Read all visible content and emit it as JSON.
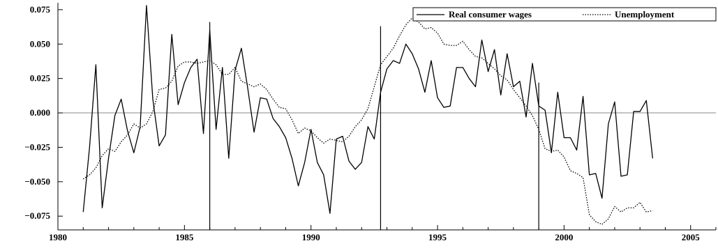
{
  "chart_data": {
    "type": "line",
    "title": "",
    "xlabel": "",
    "ylabel": "",
    "xlim": [
      1980,
      2006
    ],
    "ylim": [
      -0.085,
      0.08
    ],
    "xticks": [
      1980,
      1985,
      1990,
      1995,
      2000,
      2005
    ],
    "yticks": [
      -0.075,
      -0.05,
      -0.025,
      0.0,
      0.025,
      0.05,
      0.075
    ],
    "ytick_labels": [
      "−0.075",
      "−0.050",
      "−0.025",
      "0.000",
      "0.025",
      "0.050",
      "0.075"
    ],
    "zero_line": true,
    "grid": false,
    "legend": "top-right",
    "vertical_markers": [
      {
        "x": 1986.0,
        "y_top": 0.066
      },
      {
        "x": 1992.75,
        "y_top": 0.063
      },
      {
        "x": 1999.0,
        "y_top": 0.022
      }
    ],
    "series": [
      {
        "name": "Real consumer wages",
        "style": "solid",
        "x": [
          1981.0,
          1981.25,
          1981.5,
          1981.75,
          1982.0,
          1982.25,
          1982.5,
          1982.75,
          1983.0,
          1983.25,
          1983.5,
          1983.75,
          1984.0,
          1984.25,
          1984.5,
          1984.75,
          1985.0,
          1985.25,
          1985.5,
          1985.75,
          1986.0,
          1986.25,
          1986.5,
          1986.75,
          1987.0,
          1987.25,
          1987.5,
          1987.75,
          1988.0,
          1988.25,
          1988.5,
          1988.75,
          1989.0,
          1989.25,
          1989.5,
          1989.75,
          1990.0,
          1990.25,
          1990.5,
          1990.75,
          1991.0,
          1991.25,
          1991.5,
          1991.75,
          1992.0,
          1992.25,
          1992.5,
          1992.75,
          1993.0,
          1993.25,
          1993.5,
          1993.75,
          1994.0,
          1994.25,
          1994.5,
          1994.75,
          1995.0,
          1995.25,
          1995.5,
          1995.75,
          1996.0,
          1996.25,
          1996.5,
          1996.75,
          1997.0,
          1997.25,
          1997.5,
          1997.75,
          1998.0,
          1998.25,
          1998.5,
          1998.75,
          1999.0,
          1999.25,
          1999.5,
          1999.75,
          2000.0,
          2000.25,
          2000.5,
          2000.75,
          2001.0,
          2001.25,
          2001.5,
          2001.75,
          2002.0,
          2002.25,
          2002.5,
          2002.75,
          2003.0,
          2003.25,
          2003.5
        ],
        "values": [
          -0.072,
          -0.025,
          0.035,
          -0.069,
          -0.033,
          -0.002,
          0.01,
          -0.013,
          -0.029,
          -0.01,
          0.078,
          0.01,
          -0.024,
          -0.016,
          0.057,
          0.006,
          0.022,
          0.033,
          0.039,
          -0.015,
          0.06,
          -0.012,
          0.033,
          -0.033,
          0.031,
          0.047,
          0.018,
          -0.014,
          0.011,
          0.01,
          -0.004,
          -0.01,
          -0.018,
          -0.033,
          -0.053,
          -0.036,
          -0.012,
          -0.036,
          -0.045,
          -0.073,
          -0.019,
          -0.017,
          -0.035,
          -0.041,
          -0.036,
          -0.01,
          -0.019,
          0.015,
          0.032,
          0.038,
          0.036,
          0.05,
          0.043,
          0.032,
          0.015,
          0.038,
          0.011,
          0.004,
          0.005,
          0.033,
          0.033,
          0.025,
          0.019,
          0.053,
          0.03,
          0.046,
          0.013,
          0.043,
          0.019,
          0.023,
          -0.003,
          0.036,
          0.005,
          0.002,
          -0.029,
          0.015,
          -0.018,
          -0.018,
          -0.027,
          0.012,
          -0.045,
          -0.044,
          -0.062,
          -0.008,
          0.008,
          -0.046,
          -0.045,
          0.001,
          0.001,
          0.009,
          -0.033
        ]
      },
      {
        "name": "Unemployment",
        "style": "dotted",
        "x": [
          1981.0,
          1981.25,
          1981.5,
          1981.75,
          1982.0,
          1982.25,
          1982.5,
          1982.75,
          1983.0,
          1983.25,
          1983.5,
          1983.75,
          1984.0,
          1984.25,
          1984.5,
          1984.75,
          1985.0,
          1985.25,
          1985.5,
          1985.75,
          1986.0,
          1986.25,
          1986.5,
          1986.75,
          1987.0,
          1987.25,
          1987.5,
          1987.75,
          1988.0,
          1988.25,
          1988.5,
          1988.75,
          1989.0,
          1989.25,
          1989.5,
          1989.75,
          1990.0,
          1990.25,
          1990.5,
          1990.75,
          1991.0,
          1991.25,
          1991.5,
          1991.75,
          1992.0,
          1992.25,
          1992.5,
          1992.75,
          1993.0,
          1993.25,
          1993.5,
          1993.75,
          1994.0,
          1994.25,
          1994.5,
          1994.75,
          1995.0,
          1995.25,
          1995.5,
          1995.75,
          1996.0,
          1996.25,
          1996.5,
          1996.75,
          1997.0,
          1997.25,
          1997.5,
          1997.75,
          1998.0,
          1998.25,
          1998.5,
          1998.75,
          1999.0,
          1999.25,
          1999.5,
          1999.75,
          2000.0,
          2000.25,
          2000.5,
          2000.75,
          2001.0,
          2001.25,
          2001.5,
          2001.75,
          2002.0,
          2002.25,
          2002.5,
          2002.75,
          2003.0,
          2003.25,
          2003.5
        ],
        "values": [
          -0.048,
          -0.045,
          -0.04,
          -0.031,
          -0.026,
          -0.028,
          -0.021,
          -0.016,
          -0.008,
          -0.011,
          -0.008,
          0.001,
          0.017,
          0.018,
          0.023,
          0.034,
          0.037,
          0.037,
          0.036,
          0.037,
          0.038,
          0.035,
          0.028,
          0.028,
          0.033,
          0.023,
          0.021,
          0.019,
          0.021,
          0.017,
          0.01,
          0.004,
          0.003,
          -0.005,
          -0.015,
          -0.011,
          -0.013,
          -0.018,
          -0.022,
          -0.019,
          -0.02,
          -0.021,
          -0.017,
          -0.01,
          -0.005,
          0.003,
          0.019,
          0.035,
          0.041,
          0.047,
          0.056,
          0.064,
          0.069,
          0.066,
          0.061,
          0.062,
          0.058,
          0.05,
          0.049,
          0.049,
          0.052,
          0.046,
          0.041,
          0.04,
          0.036,
          0.032,
          0.027,
          0.024,
          0.017,
          0.011,
          0.005,
          -0.002,
          -0.012,
          -0.026,
          -0.028,
          -0.027,
          -0.032,
          -0.042,
          -0.044,
          -0.047,
          -0.074,
          -0.079,
          -0.081,
          -0.077,
          -0.068,
          -0.072,
          -0.069,
          -0.069,
          -0.065,
          -0.072,
          -0.071
        ]
      }
    ]
  }
}
